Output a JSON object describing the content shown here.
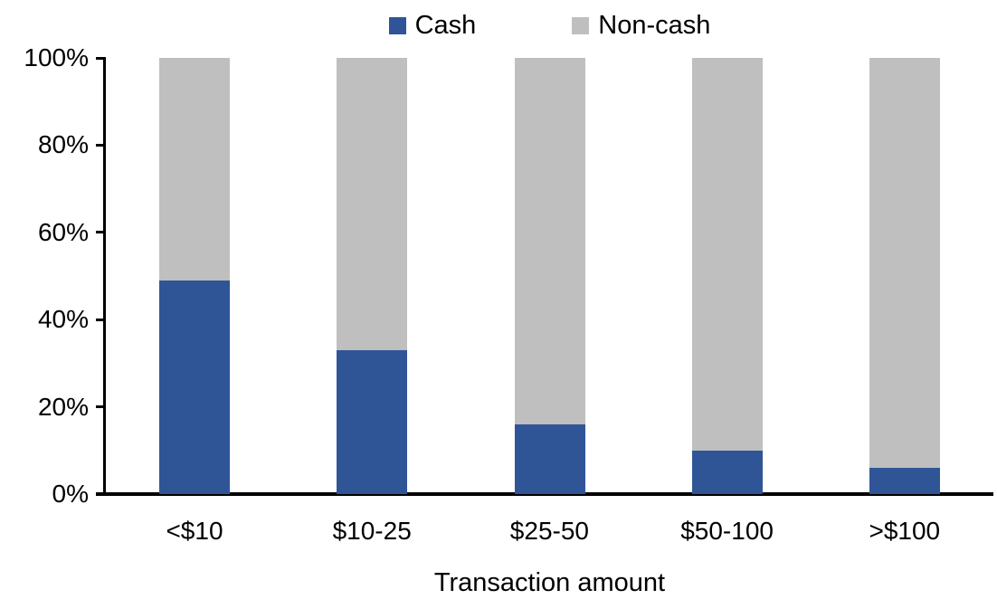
{
  "chart_data": {
    "type": "bar",
    "stacked": true,
    "percent_stacked": true,
    "title": "",
    "xlabel": "Transaction amount",
    "ylabel": "",
    "categories": [
      "<$10",
      "$10-25",
      "$25-50",
      "$50-100",
      ">$100"
    ],
    "series": [
      {
        "name": "Cash",
        "color": "#2F5597",
        "values": [
          49,
          33,
          16,
          10,
          6
        ]
      },
      {
        "name": "Non-cash",
        "color": "#BFBFBF",
        "values": [
          51,
          67,
          84,
          90,
          94
        ]
      }
    ],
    "ylim": [
      0,
      100
    ],
    "ytick_labels": [
      "0%",
      "20%",
      "40%",
      "60%",
      "80%",
      "100%"
    ],
    "grid": false,
    "legend_position": "top-center",
    "axis_color": "#000000",
    "background_color": "#FFFFFF"
  }
}
